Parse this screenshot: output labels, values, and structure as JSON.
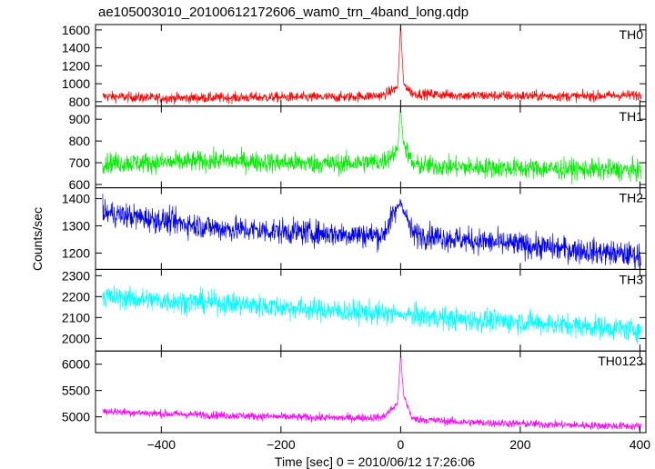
{
  "chart_data": {
    "type": "line",
    "title": "ae105003010_20100612172606_wam0_trn_4band_long.qdp",
    "xlabel": "Time [sec] 0 = 2010/06/12 17:26:06",
    "ylabel": "Counts/sec",
    "xlim": [
      -510,
      410
    ],
    "xticks": [
      -400,
      -200,
      0,
      200,
      400
    ],
    "grid": false,
    "legend": "none",
    "panels": [
      {
        "name": "TH0",
        "color": "#ff0000",
        "ylim": [
          750,
          1660
        ],
        "yticks": [
          800,
          1000,
          1200,
          1400,
          1600
        ],
        "points": [
          [
            -500,
            860
          ],
          [
            -400,
            840
          ],
          [
            -300,
            845
          ],
          [
            -200,
            850
          ],
          [
            -100,
            850
          ],
          [
            -30,
            870
          ],
          [
            -5,
            960
          ],
          [
            0,
            1650
          ],
          [
            5,
            1000
          ],
          [
            20,
            890
          ],
          [
            100,
            870
          ],
          [
            200,
            865
          ],
          [
            300,
            860
          ],
          [
            400,
            875
          ]
        ]
      },
      {
        "name": "TH1",
        "color": "#00ee00",
        "ylim": [
          585,
          960
        ],
        "yticks": [
          600,
          700,
          800,
          900
        ],
        "points": [
          [
            -500,
            700
          ],
          [
            -400,
            700
          ],
          [
            -300,
            710
          ],
          [
            -200,
            700
          ],
          [
            -100,
            695
          ],
          [
            -30,
            705
          ],
          [
            -5,
            760
          ],
          [
            0,
            960
          ],
          [
            5,
            790
          ],
          [
            20,
            690
          ],
          [
            100,
            680
          ],
          [
            200,
            675
          ],
          [
            300,
            670
          ],
          [
            400,
            665
          ]
        ]
      },
      {
        "name": "TH2",
        "color": "#0000ee",
        "ylim": [
          1140,
          1440
        ],
        "yticks": [
          1200,
          1300,
          1400
        ],
        "points": [
          [
            -500,
            1350
          ],
          [
            -400,
            1320
          ],
          [
            -300,
            1290
          ],
          [
            -200,
            1280
          ],
          [
            -100,
            1270
          ],
          [
            -30,
            1265
          ],
          [
            0,
            1390
          ],
          [
            20,
            1270
          ],
          [
            100,
            1250
          ],
          [
            200,
            1230
          ],
          [
            300,
            1210
          ],
          [
            400,
            1190
          ]
        ]
      },
      {
        "name": "TH3",
        "color": "#00ffff",
        "ylim": [
          1940,
          2330
        ],
        "yticks": [
          2000,
          2100,
          2200,
          2300
        ],
        "points": [
          [
            -500,
            2200
          ],
          [
            -400,
            2180
          ],
          [
            -300,
            2170
          ],
          [
            -200,
            2150
          ],
          [
            -100,
            2130
          ],
          [
            0,
            2115
          ],
          [
            100,
            2090
          ],
          [
            200,
            2080
          ],
          [
            300,
            2060
          ],
          [
            400,
            2040
          ]
        ]
      },
      {
        "name": "TH0123",
        "color": "#ff00ff",
        "ylim": [
          4700,
          6250
        ],
        "yticks": [
          5000,
          5500,
          6000
        ],
        "points": [
          [
            -500,
            5110
          ],
          [
            -400,
            5060
          ],
          [
            -300,
            5030
          ],
          [
            -200,
            5000
          ],
          [
            -100,
            4980
          ],
          [
            -30,
            4990
          ],
          [
            -5,
            5250
          ],
          [
            0,
            6200
          ],
          [
            5,
            5400
          ],
          [
            20,
            4960
          ],
          [
            100,
            4900
          ],
          [
            200,
            4870
          ],
          [
            300,
            4840
          ],
          [
            400,
            4820
          ]
        ]
      }
    ]
  }
}
